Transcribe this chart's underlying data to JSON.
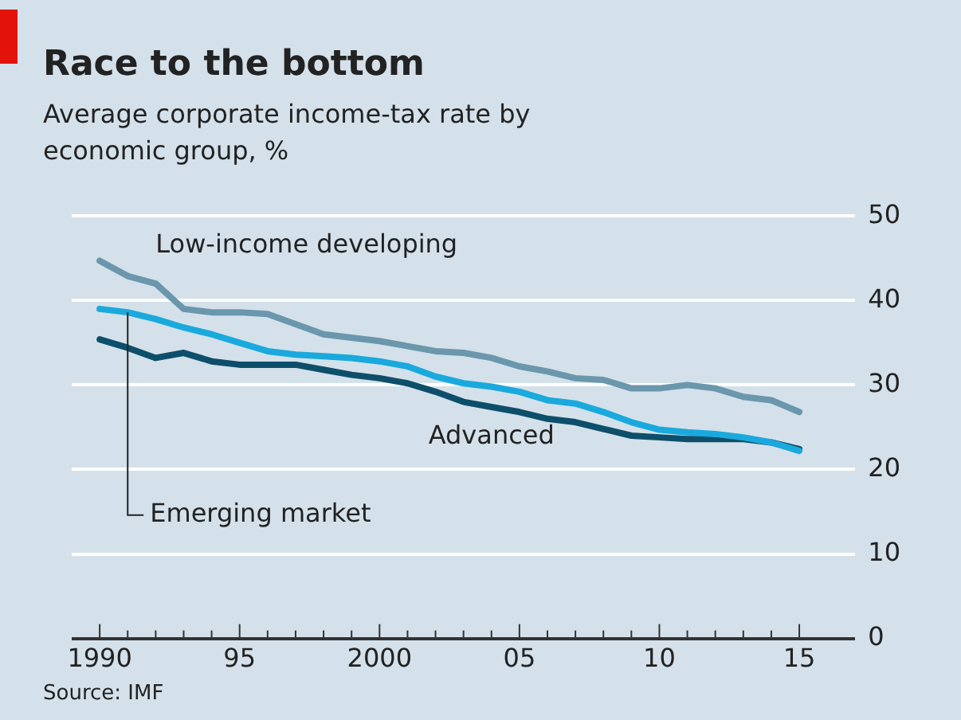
{
  "chart_data": {
    "type": "line",
    "title": "Race to the bottom",
    "subtitle": "Average corporate income-tax rate by economic group, %",
    "x": [
      1990,
      1991,
      1992,
      1993,
      1994,
      1995,
      1996,
      1997,
      1998,
      1999,
      2000,
      2001,
      2002,
      2003,
      2004,
      2005,
      2006,
      2007,
      2008,
      2009,
      2010,
      2011,
      2012,
      2013,
      2014,
      2015
    ],
    "series": [
      {
        "name": "Low-income developing",
        "color": "#6b97ad",
        "values": [
          44.7,
          42.9,
          42,
          39,
          38.6,
          38.6,
          38.4,
          37.2,
          36,
          35.6,
          35.2,
          34.6,
          34,
          33.8,
          33.2,
          32.2,
          31.6,
          30.8,
          30.6,
          29.6,
          29.6,
          30,
          29.6,
          28.6,
          28.2,
          26.8
        ]
      },
      {
        "name": "Emerging market",
        "color": "#1aa9dd",
        "values": [
          39,
          38.6,
          37.8,
          36.8,
          36,
          35,
          34,
          33.6,
          33.4,
          33.2,
          32.8,
          32.2,
          31,
          30.2,
          29.8,
          29.2,
          28.2,
          27.8,
          26.8,
          25.6,
          24.7,
          24.4,
          24.2,
          23.8,
          23.2,
          22.2
        ]
      },
      {
        "name": "Advanced",
        "color": "#0d4f6b",
        "values": [
          35.4,
          34.4,
          33.2,
          33.8,
          32.8,
          32.4,
          32.4,
          32.4,
          31.8,
          31.2,
          30.8,
          30.2,
          29.2,
          28,
          27.4,
          26.8,
          26,
          25.6,
          24.8,
          24,
          23.8,
          23.6,
          23.6,
          23.6,
          23.2,
          22.4
        ]
      }
    ],
    "xlim": [
      1989,
      2017
    ],
    "xticks": [
      {
        "value": 1990,
        "label": "1990"
      },
      {
        "value": 1991,
        "label": null
      },
      {
        "value": 1992,
        "label": null
      },
      {
        "value": 1993,
        "label": null
      },
      {
        "value": 1994,
        "label": null
      },
      {
        "value": 1995,
        "label": "95"
      },
      {
        "value": 1996,
        "label": null
      },
      {
        "value": 1997,
        "label": null
      },
      {
        "value": 1998,
        "label": null
      },
      {
        "value": 1999,
        "label": null
      },
      {
        "value": 2000,
        "label": "2000"
      },
      {
        "value": 2001,
        "label": null
      },
      {
        "value": 2002,
        "label": null
      },
      {
        "value": 2003,
        "label": null
      },
      {
        "value": 2004,
        "label": null
      },
      {
        "value": 2005,
        "label": "05"
      },
      {
        "value": 2006,
        "label": null
      },
      {
        "value": 2007,
        "label": null
      },
      {
        "value": 2008,
        "label": null
      },
      {
        "value": 2009,
        "label": null
      },
      {
        "value": 2010,
        "label": "10"
      },
      {
        "value": 2011,
        "label": null
      },
      {
        "value": 2012,
        "label": null
      },
      {
        "value": 2013,
        "label": null
      },
      {
        "value": 2014,
        "label": null
      },
      {
        "value": 2015,
        "label": "15"
      }
    ],
    "ylim": [
      0,
      50
    ],
    "yticks": [
      0,
      10,
      20,
      30,
      40,
      50
    ],
    "grid": "y",
    "legend": false,
    "marker": "none",
    "line_style": "solid",
    "annotations": [
      "Source: IMF"
    ]
  }
}
